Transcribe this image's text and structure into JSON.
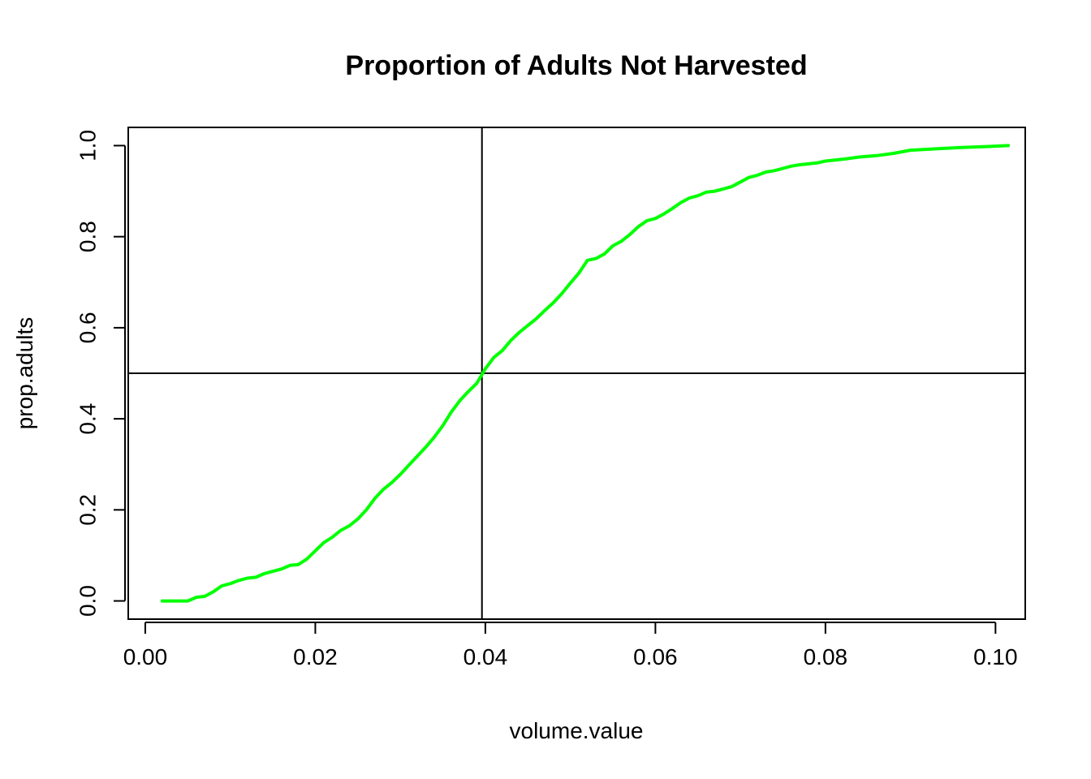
{
  "chart_data": {
    "type": "line",
    "title": "Proportion of Adults Not Harvested",
    "xlabel": "volume.value",
    "ylabel": "prop.adults",
    "xlim": [
      -0.002,
      0.1035
    ],
    "ylim": [
      -0.04,
      1.04
    ],
    "x_ticks": [
      0.0,
      0.02,
      0.04,
      0.06,
      0.08,
      0.1
    ],
    "x_tick_labels": [
      "0.00",
      "0.02",
      "0.04",
      "0.06",
      "0.08",
      "0.10"
    ],
    "y_ticks": [
      0.0,
      0.2,
      0.4,
      0.6,
      0.8,
      1.0
    ],
    "y_tick_labels": [
      "0.0",
      "0.2",
      "0.4",
      "0.6",
      "0.8",
      "1.0"
    ],
    "reference_lines": {
      "vertical_x": 0.0396,
      "horizontal_y": 0.5
    },
    "grid": false,
    "legend": "none",
    "series": [
      {
        "color": "#00FF00",
        "x": [
          0.002,
          0.005,
          0.006,
          0.007,
          0.008,
          0.009,
          0.01,
          0.011,
          0.012,
          0.013,
          0.014,
          0.015,
          0.016,
          0.017,
          0.018,
          0.019,
          0.02,
          0.021,
          0.022,
          0.023,
          0.024,
          0.025,
          0.026,
          0.027,
          0.028,
          0.029,
          0.03,
          0.031,
          0.032,
          0.033,
          0.034,
          0.035,
          0.036,
          0.037,
          0.038,
          0.039,
          0.04,
          0.041,
          0.042,
          0.043,
          0.044,
          0.045,
          0.046,
          0.047,
          0.048,
          0.049,
          0.05,
          0.051,
          0.052,
          0.053,
          0.054,
          0.055,
          0.056,
          0.057,
          0.058,
          0.059,
          0.06,
          0.061,
          0.062,
          0.063,
          0.064,
          0.065,
          0.066,
          0.067,
          0.068,
          0.069,
          0.07,
          0.071,
          0.072,
          0.073,
          0.074,
          0.075,
          0.076,
          0.077,
          0.078,
          0.079,
          0.08,
          0.082,
          0.084,
          0.086,
          0.088,
          0.09,
          0.093,
          0.096,
          0.099,
          0.1015
        ],
        "y": [
          0.0,
          0.0,
          0.008,
          0.01,
          0.02,
          0.033,
          0.038,
          0.045,
          0.05,
          0.052,
          0.06,
          0.065,
          0.07,
          0.078,
          0.08,
          0.092,
          0.11,
          0.128,
          0.14,
          0.155,
          0.165,
          0.18,
          0.2,
          0.225,
          0.245,
          0.26,
          0.278,
          0.298,
          0.318,
          0.338,
          0.36,
          0.385,
          0.415,
          0.44,
          0.46,
          0.478,
          0.51,
          0.535,
          0.55,
          0.572,
          0.59,
          0.605,
          0.62,
          0.638,
          0.655,
          0.675,
          0.698,
          0.72,
          0.748,
          0.752,
          0.762,
          0.78,
          0.79,
          0.805,
          0.822,
          0.835,
          0.84,
          0.85,
          0.862,
          0.875,
          0.885,
          0.89,
          0.898,
          0.9,
          0.905,
          0.91,
          0.92,
          0.93,
          0.935,
          0.942,
          0.945,
          0.95,
          0.955,
          0.958,
          0.96,
          0.962,
          0.966,
          0.97,
          0.975,
          0.978,
          0.983,
          0.99,
          0.993,
          0.996,
          0.998,
          1.0
        ]
      }
    ]
  }
}
